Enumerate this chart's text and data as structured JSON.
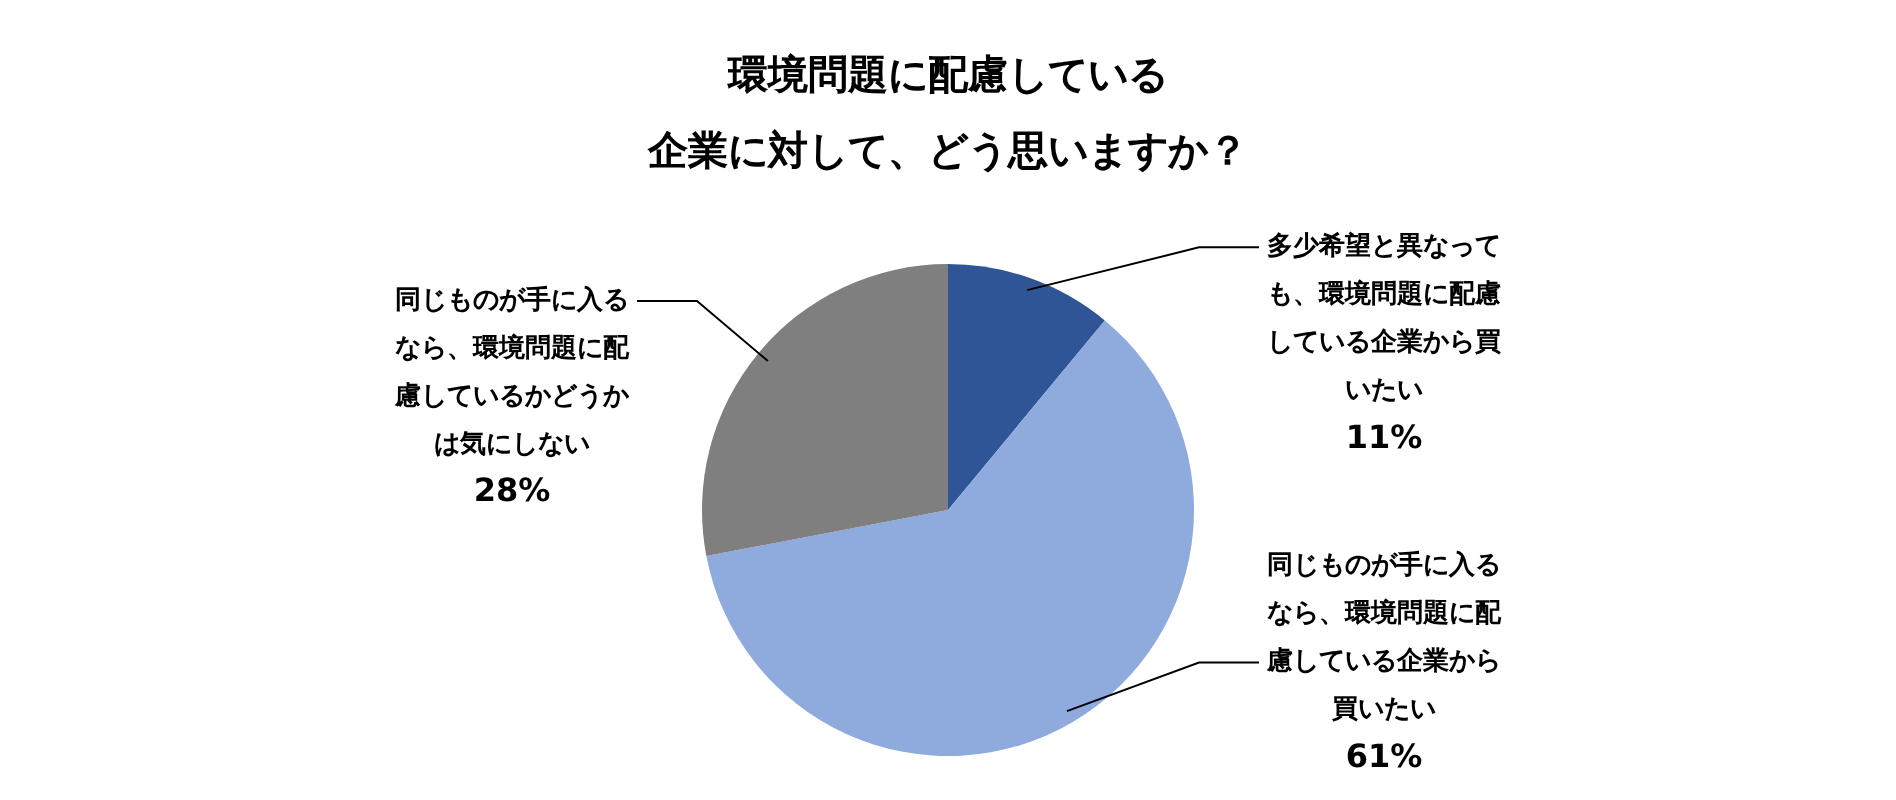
{
  "chart_data": {
    "type": "pie",
    "title": "環境問題に配慮している企業に対して、どう思いますか？",
    "categories": [
      "多少希望と異なっても、環境問題に配慮している企業から買いたい",
      "同じものが手に入るなら、環境問題に配慮している企業から買いたい",
      "同じものが手に入るなら、環境問題に配慮しているかどうかは気にしない"
    ],
    "values": [
      11,
      61,
      28
    ],
    "colors": [
      "#2f5597",
      "#8faadc",
      "#7f7f7f"
    ],
    "value_labels": [
      "11%",
      "61%",
      "28%"
    ],
    "legend": false
  }
}
